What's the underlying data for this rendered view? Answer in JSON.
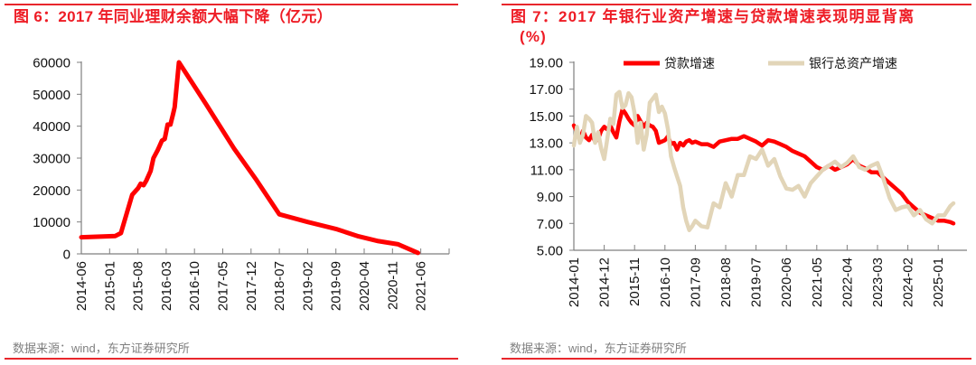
{
  "left": {
    "title": "图 6：2017 年同业理财余额大幅下降（亿元）",
    "source": "数据来源：wind，东方证券研究所"
  },
  "right": {
    "title_line1": "图 7：2017 年银行业资产增速与贷款增速表现明显背离",
    "title_line2": "(%)",
    "source": "数据来源：wind，东方证券研究所"
  },
  "colors": {
    "accent": "#ee1c25",
    "rule": "#e8262c",
    "series_red": "#ff0000",
    "series_tan": "#e2d5b8",
    "axis": "#7f7f7f",
    "source": "#7f7f7f"
  },
  "chart_data": [
    {
      "type": "line",
      "title": "图 6：2017 年同业理财余额大幅下降（亿元）",
      "xlabel": "",
      "ylabel": "亿元",
      "ylim": [
        0,
        60000
      ],
      "yticks": [
        0,
        10000,
        20000,
        30000,
        40000,
        50000,
        60000
      ],
      "categories": [
        "2014-06",
        "2015-01",
        "2015-08",
        "2016-03",
        "2016-10",
        "2017-05",
        "2017-12",
        "2018-07",
        "2019-02",
        "2019-09",
        "2020-04",
        "2020-11",
        "2021-06"
      ],
      "grid": false,
      "legend": null,
      "series": [
        {
          "name": "同业理财余额",
          "x": [
            0,
            1.2,
            1.4,
            1.8,
            2.0,
            2.1,
            2.2,
            2.3,
            2.45,
            2.55,
            2.7,
            2.75,
            2.85,
            2.95,
            3.05,
            3.15,
            3.25,
            3.3,
            3.45,
            4.4,
            5.4,
            6.2,
            7.0,
            8.0,
            9.0,
            9.8,
            10.5,
            11.2,
            11.9
          ],
          "values": [
            5200,
            5600,
            6500,
            18500,
            20500,
            22000,
            21500,
            23000,
            26000,
            30000,
            32500,
            33500,
            35500,
            36000,
            40500,
            40500,
            44000,
            46000,
            60000,
            47000,
            33000,
            23000,
            12400,
            10000,
            7800,
            5500,
            4000,
            3000,
            300
          ]
        }
      ]
    },
    {
      "type": "line",
      "title": "图 7：2017 年银行业资产增速与贷款增速表现明显背离 (%)",
      "xlabel": "",
      "ylabel": "%",
      "ylim": [
        5,
        19
      ],
      "yticks": [
        "5.00",
        "7.00",
        "9.00",
        "11.00",
        "13.00",
        "15.00",
        "17.00",
        "19.00"
      ],
      "categories": [
        "2014-01",
        "2014-12",
        "2015-11",
        "2016-10",
        "2017-09",
        "2018-08",
        "2019-07",
        "2020-06",
        "2021-05",
        "2022-04",
        "2023-03",
        "2024-02",
        "2025-01"
      ],
      "grid": false,
      "legend": {
        "position": "top",
        "entries": [
          "贷款增速",
          "银行总资产增速"
        ]
      },
      "series": [
        {
          "name": "贷款增速",
          "color": "#ff0000",
          "x": [
            0,
            0.1,
            0.2,
            0.3,
            0.4,
            0.5,
            0.6,
            0.7,
            0.8,
            0.9,
            1.0,
            1.1,
            1.2,
            1.3,
            1.4,
            1.5,
            1.6,
            1.7,
            1.8,
            1.9,
            2.0,
            2.1,
            2.2,
            2.3,
            2.4,
            2.5,
            2.6,
            2.7,
            2.8,
            2.9,
            3.0,
            3.1,
            3.2,
            3.3,
            3.4,
            3.5,
            3.6,
            3.7,
            3.8,
            3.9,
            4.0,
            4.2,
            4.4,
            4.6,
            4.8,
            5.0,
            5.2,
            5.4,
            5.6,
            5.8,
            6.0,
            6.2,
            6.4,
            6.6,
            6.8,
            7.0,
            7.2,
            7.4,
            7.6,
            7.8,
            8.0,
            8.2,
            8.4,
            8.6,
            8.8,
            9.0,
            9.2,
            9.4,
            9.6,
            9.8,
            10.0,
            10.2,
            10.4,
            10.6,
            10.8,
            11.0,
            11.2,
            11.4,
            11.6,
            11.8,
            12.0,
            12.2,
            12.4,
            12.5
          ],
          "values": [
            14.3,
            13.8,
            13.3,
            13.9,
            13.4,
            13.2,
            13.6,
            13.1,
            13.3,
            13.9,
            14.2,
            14.0,
            14.3,
            13.8,
            13.4,
            14.6,
            15.5,
            15.2,
            14.8,
            14.5,
            14.3,
            15.0,
            14.6,
            14.2,
            14.5,
            14.3,
            14.2,
            13.9,
            13.0,
            13.1,
            13.2,
            13.5,
            12.9,
            13.0,
            12.5,
            13.0,
            12.8,
            13.1,
            13.2,
            13.0,
            13.1,
            12.9,
            12.9,
            12.7,
            13.1,
            13.2,
            13.3,
            13.3,
            13.5,
            13.3,
            13.1,
            12.8,
            13.2,
            13.1,
            12.9,
            12.7,
            12.4,
            12.2,
            12.0,
            11.6,
            11.2,
            11.0,
            11.3,
            11.0,
            11.2,
            11.4,
            11.8,
            11.3,
            11.1,
            10.8,
            10.8,
            10.4,
            10.0,
            9.6,
            9.2,
            8.6,
            8.2,
            7.8,
            7.6,
            7.4,
            7.2,
            7.2,
            7.1,
            7.0
          ]
        },
        {
          "name": "银行总资产增速",
          "color": "#e2d5b8",
          "x": [
            0,
            0.1,
            0.2,
            0.3,
            0.4,
            0.5,
            0.6,
            0.7,
            0.8,
            0.9,
            1.0,
            1.1,
            1.2,
            1.3,
            1.4,
            1.5,
            1.6,
            1.7,
            1.8,
            1.9,
            2.0,
            2.1,
            2.2,
            2.3,
            2.4,
            2.5,
            2.6,
            2.7,
            2.8,
            2.9,
            3.0,
            3.1,
            3.2,
            3.3,
            3.4,
            3.5,
            3.6,
            3.7,
            3.8,
            3.9,
            4.0,
            4.2,
            4.4,
            4.6,
            4.8,
            5.0,
            5.2,
            5.4,
            5.6,
            5.8,
            6.0,
            6.2,
            6.4,
            6.6,
            6.8,
            7.0,
            7.2,
            7.4,
            7.6,
            7.8,
            8.0,
            8.2,
            8.4,
            8.6,
            8.8,
            9.0,
            9.2,
            9.4,
            9.6,
            9.8,
            10.0,
            10.2,
            10.4,
            10.6,
            10.8,
            11.0,
            11.2,
            11.4,
            11.6,
            11.8,
            12.0,
            12.2,
            12.4,
            12.5
          ],
          "values": [
            12.8,
            14.2,
            13.0,
            13.6,
            15.0,
            14.8,
            14.5,
            13.0,
            13.8,
            12.6,
            11.8,
            13.3,
            14.8,
            14.4,
            16.6,
            16.8,
            15.6,
            15.8,
            16.7,
            16.4,
            15.2,
            13.0,
            14.5,
            12.5,
            13.6,
            16.0,
            16.3,
            16.6,
            15.3,
            15.7,
            15.2,
            14.0,
            12.0,
            11.2,
            10.5,
            9.8,
            8.2,
            7.2,
            6.5,
            6.8,
            7.2,
            6.8,
            6.7,
            8.5,
            8.2,
            10.0,
            9.0,
            10.6,
            10.6,
            12.0,
            11.8,
            12.5,
            11.3,
            11.8,
            10.5,
            9.6,
            9.5,
            9.8,
            9.0,
            10.0,
            10.5,
            11.0,
            11.3,
            11.6,
            11.2,
            11.5,
            12.0,
            11.2,
            11.0,
            11.3,
            11.5,
            10.3,
            8.9,
            8.0,
            8.2,
            8.3,
            7.6,
            8.0,
            7.3,
            7.0,
            7.6,
            7.6,
            8.3,
            8.5
          ]
        }
      ]
    }
  ]
}
